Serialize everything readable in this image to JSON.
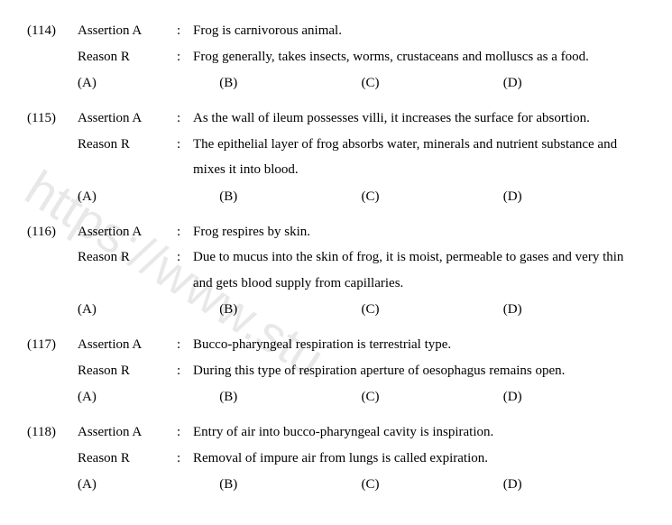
{
  "watermark": "https://www.stu",
  "labels": {
    "assertion": "Assertion A",
    "reason": "Reason R",
    "colon": ":"
  },
  "options": {
    "a": "(A)",
    "b": "(B)",
    "c": "(C)",
    "d": "(D)"
  },
  "questions": [
    {
      "num": "(114)",
      "assertion": "Frog is carnivorous animal.",
      "reason": "Frog generally, takes insects, worms, crustaceans and molluscs as a food."
    },
    {
      "num": "(115)",
      "assertion": "As the wall of ileum possesses villi, it increases the surface for absortion.",
      "reason": "The epithelial layer of frog absorbs water, minerals and nutrient substance and mixes it into blood."
    },
    {
      "num": "(116)",
      "assertion": "Frog respires by skin.",
      "reason": "Due to mucus into the skin of frog, it is moist, permeable to gases and very thin and gets blood supply from capillaries."
    },
    {
      "num": "(117)",
      "assertion": "Bucco-pharyngeal respiration is terrestrial type.",
      "reason": "During this type of respiration aperture of oesophagus remains open."
    },
    {
      "num": "(118)",
      "assertion": "Entry of air into bucco-pharyngeal cavity is inspiration.",
      "reason": "Removal of impure air from lungs is called expiration."
    }
  ]
}
